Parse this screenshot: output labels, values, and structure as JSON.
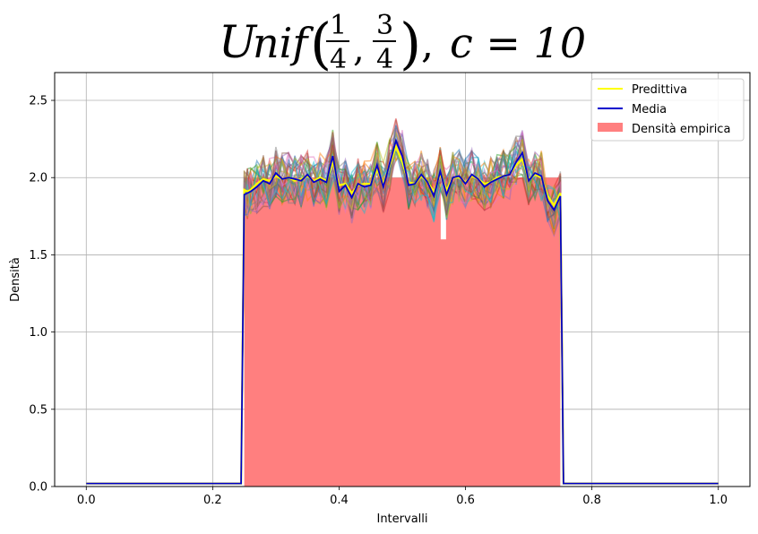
{
  "chart_data": {
    "type": "bar",
    "title": {
      "script_letter": "U",
      "word": "nif",
      "frac1_num": "1",
      "frac1_den": "4",
      "frac2_num": "3",
      "frac2_den": "4",
      "open_paren": "(",
      "close_paren": ")",
      "comma": ",",
      "trailing_comma": ",",
      "param": "c = 10"
    },
    "xlabel": "Intervalli",
    "ylabel": "Densità",
    "xlim": [
      -0.05,
      1.05
    ],
    "ylim": [
      0,
      2.68
    ],
    "xticks": [
      "0.0",
      "0.2",
      "0.4",
      "0.6",
      "0.8",
      "1.0"
    ],
    "yticks": [
      "0.0",
      "0.5",
      "1.0",
      "1.5",
      "2.0",
      "2.5"
    ],
    "grid": true,
    "legend_position": "top-right",
    "legend": [
      {
        "label": "Predittiva",
        "color": "#ffff00",
        "kind": "line"
      },
      {
        "label": "Media",
        "color": "#0000cc",
        "kind": "line"
      },
      {
        "label": "Densità empirica",
        "color": "#ff7f7f",
        "kind": "patch"
      }
    ],
    "histogram": {
      "name": "Densità empirica",
      "color": "#ff7f7f",
      "range": [
        0.25,
        0.75
      ],
      "density": 2.0,
      "gap_at": 0.565,
      "gap_top": 1.6
    },
    "media": {
      "name": "Media",
      "color": "#0000cc",
      "x": [
        0.0,
        0.24,
        0.245,
        0.25,
        0.255,
        0.26,
        0.27,
        0.28,
        0.29,
        0.3,
        0.31,
        0.32,
        0.33,
        0.34,
        0.35,
        0.36,
        0.37,
        0.38,
        0.39,
        0.4,
        0.41,
        0.42,
        0.43,
        0.44,
        0.45,
        0.46,
        0.47,
        0.48,
        0.49,
        0.5,
        0.51,
        0.52,
        0.53,
        0.54,
        0.55,
        0.56,
        0.57,
        0.58,
        0.59,
        0.6,
        0.61,
        0.62,
        0.63,
        0.64,
        0.65,
        0.66,
        0.67,
        0.68,
        0.69,
        0.7,
        0.71,
        0.72,
        0.73,
        0.74,
        0.75,
        0.755,
        0.76,
        1.0
      ],
      "y": [
        0.02,
        0.02,
        0.02,
        1.89,
        1.9,
        1.91,
        1.94,
        1.98,
        1.96,
        2.03,
        1.99,
        2.0,
        1.99,
        1.98,
        2.02,
        1.97,
        1.99,
        1.97,
        2.14,
        1.91,
        1.95,
        1.87,
        1.96,
        1.94,
        1.95,
        2.08,
        1.94,
        2.09,
        2.24,
        2.14,
        1.95,
        1.96,
        2.02,
        1.97,
        1.88,
        2.04,
        1.89,
        2.0,
        2.01,
        1.96,
        2.02,
        1.99,
        1.94,
        1.97,
        1.99,
        2.01,
        2.02,
        2.1,
        2.16,
        1.98,
        2.03,
        2.01,
        1.85,
        1.79,
        1.88,
        0.02,
        0.02,
        0.02
      ]
    },
    "predittiva": {
      "name": "Predittiva",
      "color": "#ffff00",
      "y": [
        0.02,
        0.02,
        0.02,
        1.92,
        1.91,
        1.92,
        1.96,
        1.99,
        1.98,
        2.01,
        1.99,
        2.0,
        1.98,
        1.99,
        2.01,
        1.98,
        2.0,
        1.98,
        2.1,
        1.95,
        1.96,
        1.9,
        1.95,
        1.96,
        1.96,
        2.05,
        1.96,
        2.08,
        2.2,
        2.1,
        1.97,
        1.96,
        2.01,
        1.97,
        1.91,
        2.02,
        1.92,
        2.0,
        2.0,
        1.97,
        2.01,
        1.99,
        1.96,
        1.97,
        2.0,
        2.01,
        2.02,
        2.08,
        2.12,
        1.99,
        2.02,
        2.0,
        1.88,
        1.82,
        1.9,
        0.02,
        0.02,
        0.02
      ]
    },
    "samples": {
      "count": 30,
      "opacity": 0.5,
      "colors": [
        "#1f77b4",
        "#ff7f0e",
        "#2ca02c",
        "#d62728",
        "#9467bd",
        "#8c564b",
        "#e377c2",
        "#7f7f7f",
        "#bcbd22",
        "#17becf"
      ]
    }
  }
}
